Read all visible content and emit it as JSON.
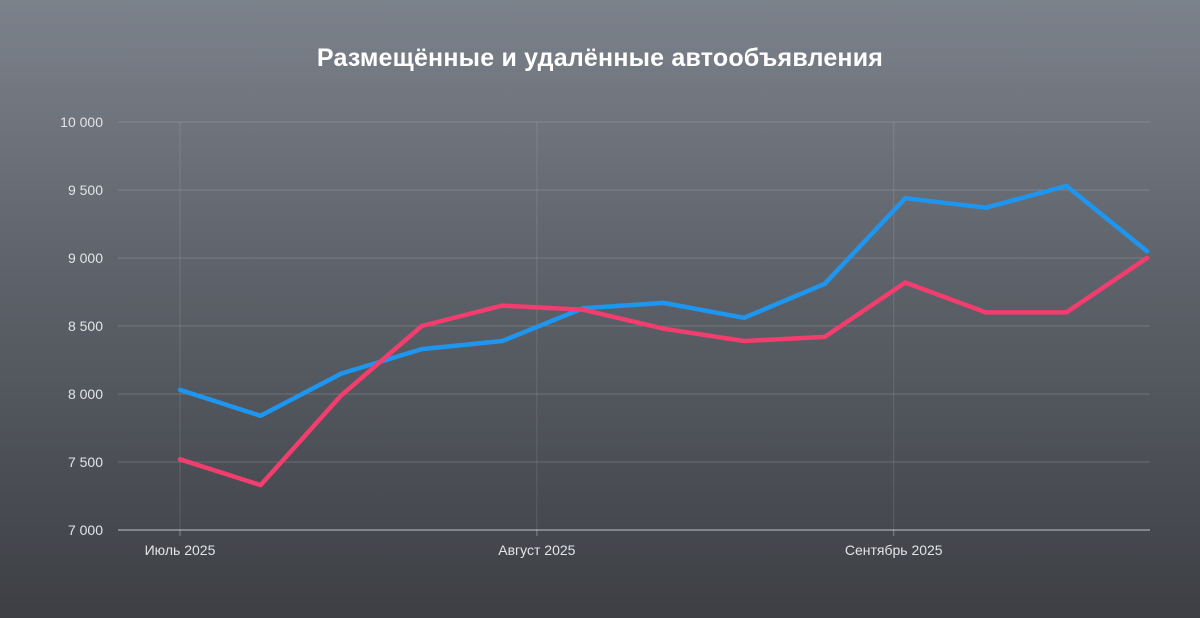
{
  "chart_data": {
    "type": "line",
    "title": "Размещённые и удалённые автообъявления",
    "xlabel": "",
    "ylabel": "",
    "ylim": [
      7000,
      10000
    ],
    "yticks": [
      7000,
      7500,
      8000,
      8500,
      9000,
      9500,
      10000
    ],
    "ytick_labels": [
      "7 000",
      "7 500",
      "8 000",
      "8 500",
      "9 000",
      "9 500",
      "10 000"
    ],
    "x": [
      "2025-07-01",
      "2025-07-08",
      "2025-07-15",
      "2025-07-22",
      "2025-07-29",
      "2025-08-05",
      "2025-08-12",
      "2025-08-19",
      "2025-08-26",
      "2025-09-02",
      "2025-09-09",
      "2025-09-16",
      "2025-09-23"
    ],
    "xticks": [
      {
        "x": "2025-07-01",
        "label": "Июль 2025"
      },
      {
        "x": "2025-08-01",
        "label": "Август 2025"
      },
      {
        "x": "2025-09-01",
        "label": "Сентябрь 2025"
      }
    ],
    "grid": true,
    "series": [
      {
        "color": "#1e96f0",
        "values": [
          8030,
          7840,
          8150,
          8330,
          8390,
          8630,
          8670,
          8560,
          8810,
          9440,
          9370,
          9530,
          9050
        ]
      },
      {
        "color": "#f23d6e",
        "values": [
          7520,
          7330,
          7990,
          8500,
          8650,
          8620,
          8480,
          8390,
          8420,
          8820,
          8600,
          8600,
          9000
        ]
      }
    ]
  }
}
